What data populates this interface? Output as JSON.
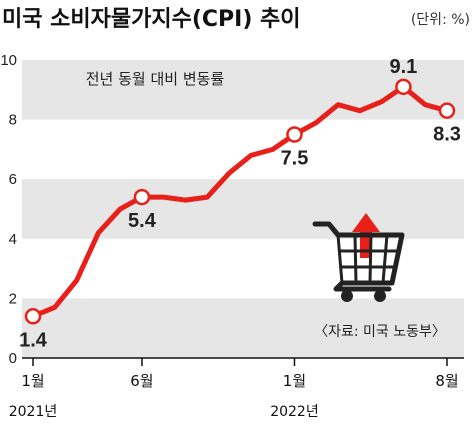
{
  "title": "미국 소비자물가지수(CPI) 추이",
  "unit": "(단위: %)",
  "subtitle": "전년 동월 대비 변동률",
  "source": "〈자료: 미국 노동부〉",
  "colors": {
    "line": "#e8201a",
    "band": "#e6e6e6",
    "axis": "#111111"
  },
  "icon": "shopping-cart-up-arrow-icon",
  "chart_data": {
    "type": "line",
    "title": "미국 소비자물가지수(CPI) 추이",
    "ylabel": "",
    "xlabel": "",
    "ylim": [
      0,
      10
    ],
    "y_ticks": [
      "0",
      "2",
      "4",
      "6",
      "8",
      "10"
    ],
    "x_ticks": [
      {
        "label": "1월",
        "year": "2021년",
        "index": 0
      },
      {
        "label": "6월",
        "year": "",
        "index": 5
      },
      {
        "label": "1월",
        "year": "2022년",
        "index": 12
      },
      {
        "label": "8월",
        "year": "",
        "index": 19
      }
    ],
    "x": [
      "2021-01",
      "2021-02",
      "2021-03",
      "2021-04",
      "2021-05",
      "2021-06",
      "2021-07",
      "2021-08",
      "2021-09",
      "2021-10",
      "2021-11",
      "2021-12",
      "2022-01",
      "2022-02",
      "2022-03",
      "2022-04",
      "2022-05",
      "2022-06",
      "2022-07",
      "2022-08"
    ],
    "series": [
      {
        "values": [
          1.4,
          1.7,
          2.6,
          4.2,
          5.0,
          5.4,
          5.4,
          5.3,
          5.4,
          6.2,
          6.8,
          7.0,
          7.5,
          7.9,
          8.5,
          8.3,
          8.6,
          9.1,
          8.5,
          8.3
        ]
      }
    ],
    "labeled_points": [
      {
        "index": 0,
        "text": "1.4",
        "pos": "below"
      },
      {
        "index": 5,
        "text": "5.4",
        "pos": "below"
      },
      {
        "index": 12,
        "text": "7.5",
        "pos": "below"
      },
      {
        "index": 17,
        "text": "9.1",
        "pos": "above"
      },
      {
        "index": 19,
        "text": "8.3",
        "pos": "below"
      }
    ],
    "grid": "alternating-bands",
    "legend": "none"
  }
}
